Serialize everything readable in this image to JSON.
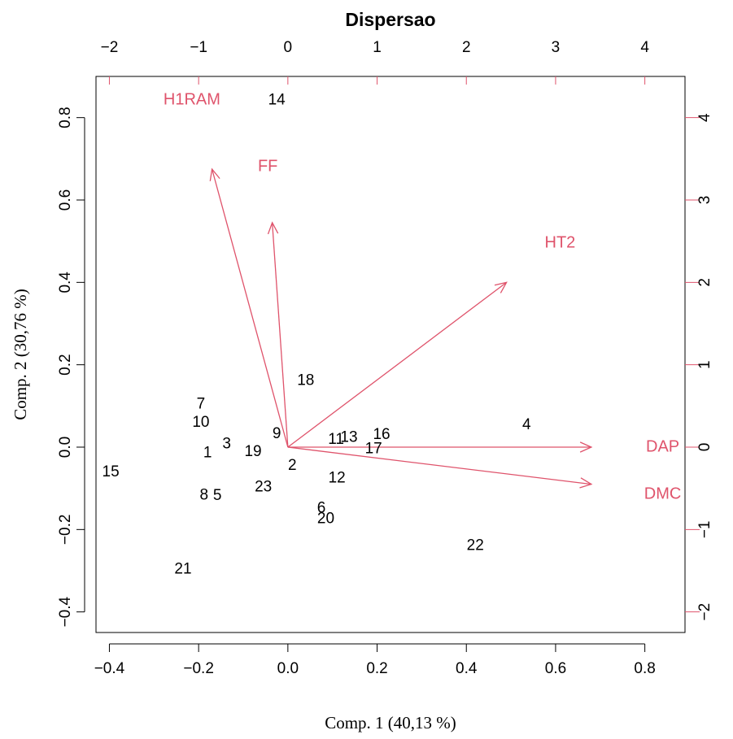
{
  "chart_data": {
    "type": "scatter",
    "subtype": "biplot",
    "title": "Dispersao",
    "xlabel": "Comp. 1 (40,13 %)",
    "ylabel": "Comp. 2 (30,76 %)",
    "xlim": [
      -0.43,
      0.89
    ],
    "ylim": [
      -0.45,
      0.9
    ],
    "x_ticks": [
      -0.4,
      -0.2,
      0.0,
      0.2,
      0.4,
      0.6,
      0.8
    ],
    "x_tick_labels": [
      "−0.4",
      "−0.2",
      "0.0",
      "0.2",
      "0.4",
      "0.6",
      "0.8"
    ],
    "y_ticks": [
      -0.4,
      -0.2,
      0.0,
      0.2,
      0.4,
      0.6,
      0.8
    ],
    "y_tick_labels": [
      "−0.4",
      "−0.2",
      "0.0",
      "0.2",
      "0.4",
      "0.6",
      "0.8"
    ],
    "top_axis": {
      "ticks": [
        -2,
        -1,
        0,
        1,
        2,
        3,
        4
      ],
      "tick_labels": [
        "−2",
        "−1",
        "0",
        "1",
        "2",
        "3",
        "4"
      ],
      "color": "#000000"
    },
    "right_axis": {
      "ticks": [
        -2,
        -1,
        0,
        1,
        2,
        3,
        4
      ],
      "tick_labels": [
        "−2",
        "−1",
        "0",
        "1",
        "2",
        "3",
        "4"
      ],
      "color": "#df536b"
    },
    "secondary_scale": 5.0,
    "grid": false,
    "points": [
      {
        "label": "1",
        "x": -0.18,
        "y": -0.015
      },
      {
        "label": "2",
        "x": 0.01,
        "y": -0.045
      },
      {
        "label": "3",
        "x": -0.137,
        "y": 0.007
      },
      {
        "label": "4",
        "x": 0.535,
        "y": 0.053
      },
      {
        "label": "5",
        "x": -0.158,
        "y": -0.118
      },
      {
        "label": "6",
        "x": 0.075,
        "y": -0.149
      },
      {
        "label": "7",
        "x": -0.195,
        "y": 0.104
      },
      {
        "label": "8",
        "x": -0.188,
        "y": -0.117
      },
      {
        "label": "9",
        "x": -0.025,
        "y": 0.032
      },
      {
        "label": "10",
        "x": -0.195,
        "y": 0.059
      },
      {
        "label": "11",
        "x": 0.108,
        "y": 0.018
      },
      {
        "label": "12",
        "x": 0.11,
        "y": -0.076
      },
      {
        "label": "13",
        "x": 0.137,
        "y": 0.023
      },
      {
        "label": "14",
        "x": -0.025,
        "y": 0.842
      },
      {
        "label": "15",
        "x": -0.397,
        "y": -0.061
      },
      {
        "label": "16",
        "x": 0.21,
        "y": 0.03
      },
      {
        "label": "17",
        "x": 0.192,
        "y": -0.005
      },
      {
        "label": "18",
        "x": 0.04,
        "y": 0.161
      },
      {
        "label": "19",
        "x": -0.078,
        "y": -0.012
      },
      {
        "label": "20",
        "x": 0.085,
        "y": -0.175
      },
      {
        "label": "21",
        "x": -0.235,
        "y": -0.297
      },
      {
        "label": "22",
        "x": 0.42,
        "y": -0.24
      },
      {
        "label": "23",
        "x": -0.055,
        "y": -0.098
      }
    ],
    "arrows": [
      {
        "label": "DAP",
        "x": 0.68,
        "y": 0.0,
        "label_x": 0.84,
        "label_y": 0.0
      },
      {
        "label": "DMC",
        "x": 0.68,
        "y": -0.09,
        "label_x": 0.84,
        "label_y": -0.115
      },
      {
        "label": "HT2",
        "x": 0.49,
        "y": 0.4,
        "label_x": 0.61,
        "label_y": 0.495
      },
      {
        "label": "FF",
        "x": -0.035,
        "y": 0.545,
        "label_x": -0.045,
        "label_y": 0.68
      },
      {
        "label": "H1RAM",
        "x": -0.17,
        "y": 0.675,
        "label_x": -0.215,
        "label_y": 0.842
      }
    ],
    "colors": {
      "points": "#000000",
      "arrows": "#df536b"
    }
  }
}
